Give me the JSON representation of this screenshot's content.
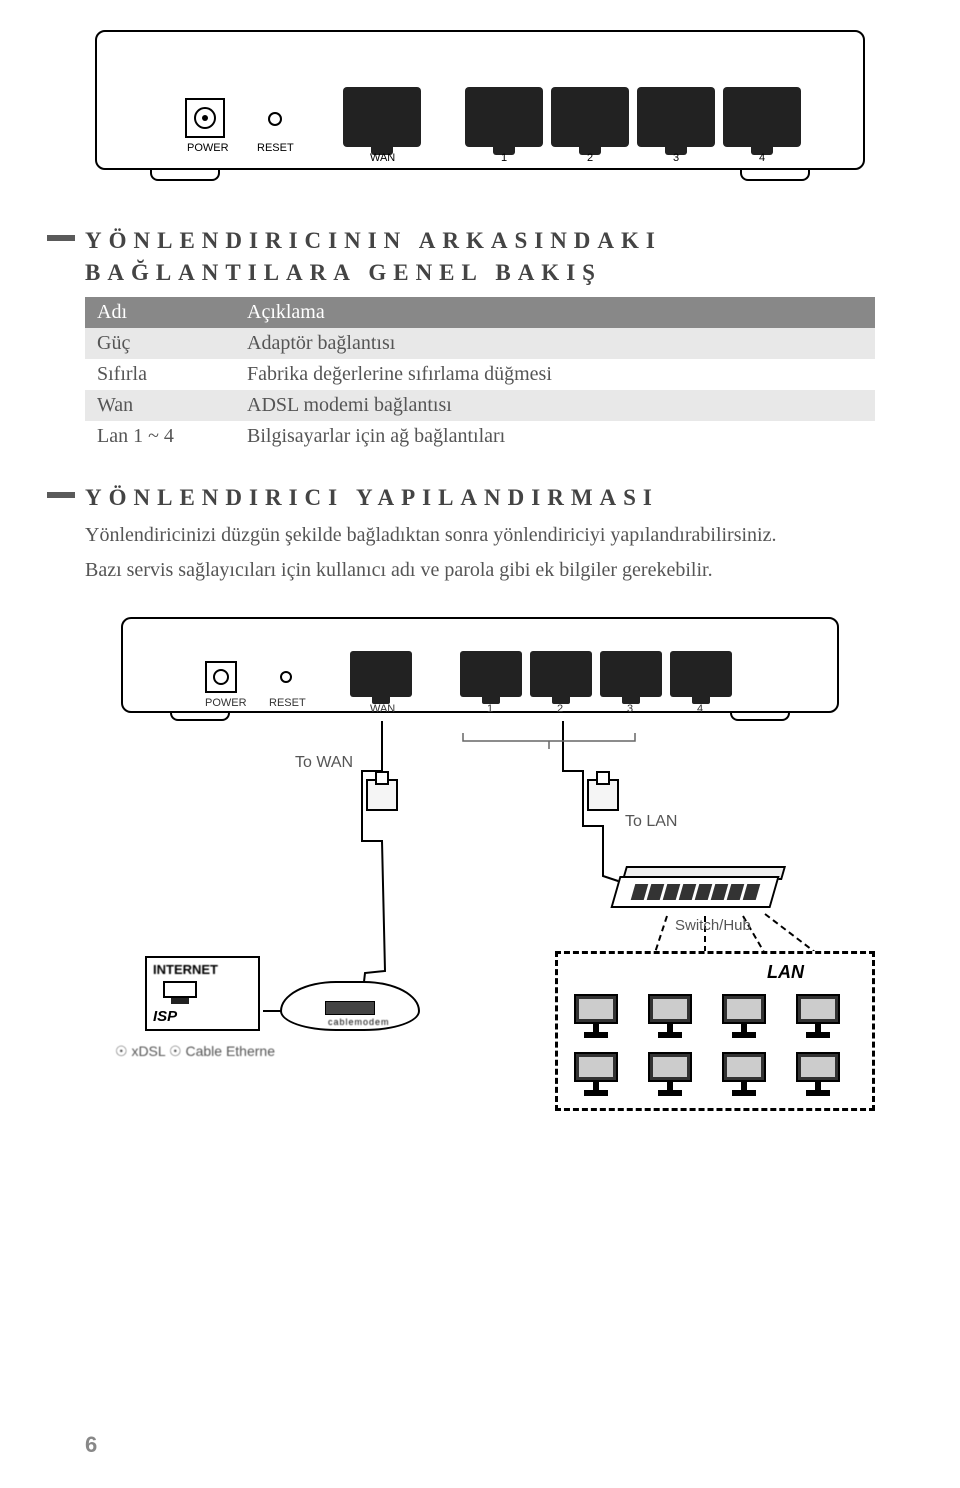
{
  "router_top": {
    "port_labels": {
      "power": "POWER",
      "reset": "RESET",
      "wan": "WAN",
      "lan1": "1",
      "lan2": "2",
      "lan3": "3",
      "lan4": "4"
    }
  },
  "section1": {
    "heading": "YÖNLENDIRICININ ARKASINDAKI BAĞLANTILARA GENEL BAKIŞ",
    "table": {
      "headers": {
        "name": "Adı",
        "desc": "Açıklama"
      },
      "rows": [
        {
          "name": "Güç",
          "desc": "Adaptör bağlantısı"
        },
        {
          "name": "Sıfırla",
          "desc": "Fabrika değerlerine sıfırlama düğmesi"
        },
        {
          "name": "Wan",
          "desc": "ADSL modemi bağlantısı"
        },
        {
          "name": "Lan 1 ~ 4",
          "desc": "Bilgisayarlar için ağ bağlantıları"
        }
      ]
    }
  },
  "section2": {
    "heading": "YÖNLENDIRICI YAPILANDIRMASI",
    "body1": "Yönlendiricinizi düzgün şekilde bağladıktan sonra yönlendiriciyi yapılandırabilirsiniz.",
    "body2": "Bazı servis sağlayıcıları için kullanıcı adı ve parola gibi ek bilgiler gerekebilir."
  },
  "diagram_bottom": {
    "port_labels": {
      "power": "POWER",
      "reset": "RESET",
      "wan": "WAN",
      "lan1": "1",
      "lan2": "2",
      "lan3": "3",
      "lan4": "4"
    },
    "to_wan": "To WAN",
    "to_lan": "To LAN",
    "switch": "Switch/Hub",
    "lan_title": "LAN",
    "isp_internet": "INTERNET",
    "isp_label": "ISP",
    "modem_label": "cablemodem",
    "bottom_label": "☉  xDSL ☉ Cable    Etherne",
    "slot_count": 8,
    "pc_count": 8
  },
  "page_number": "6",
  "colors": {
    "heading_text": "#444444",
    "body_text": "#555555",
    "table_header_bg": "#888888",
    "table_stripe_bg": "#e8e8e8",
    "marker_bg": "#5a5a5a"
  }
}
